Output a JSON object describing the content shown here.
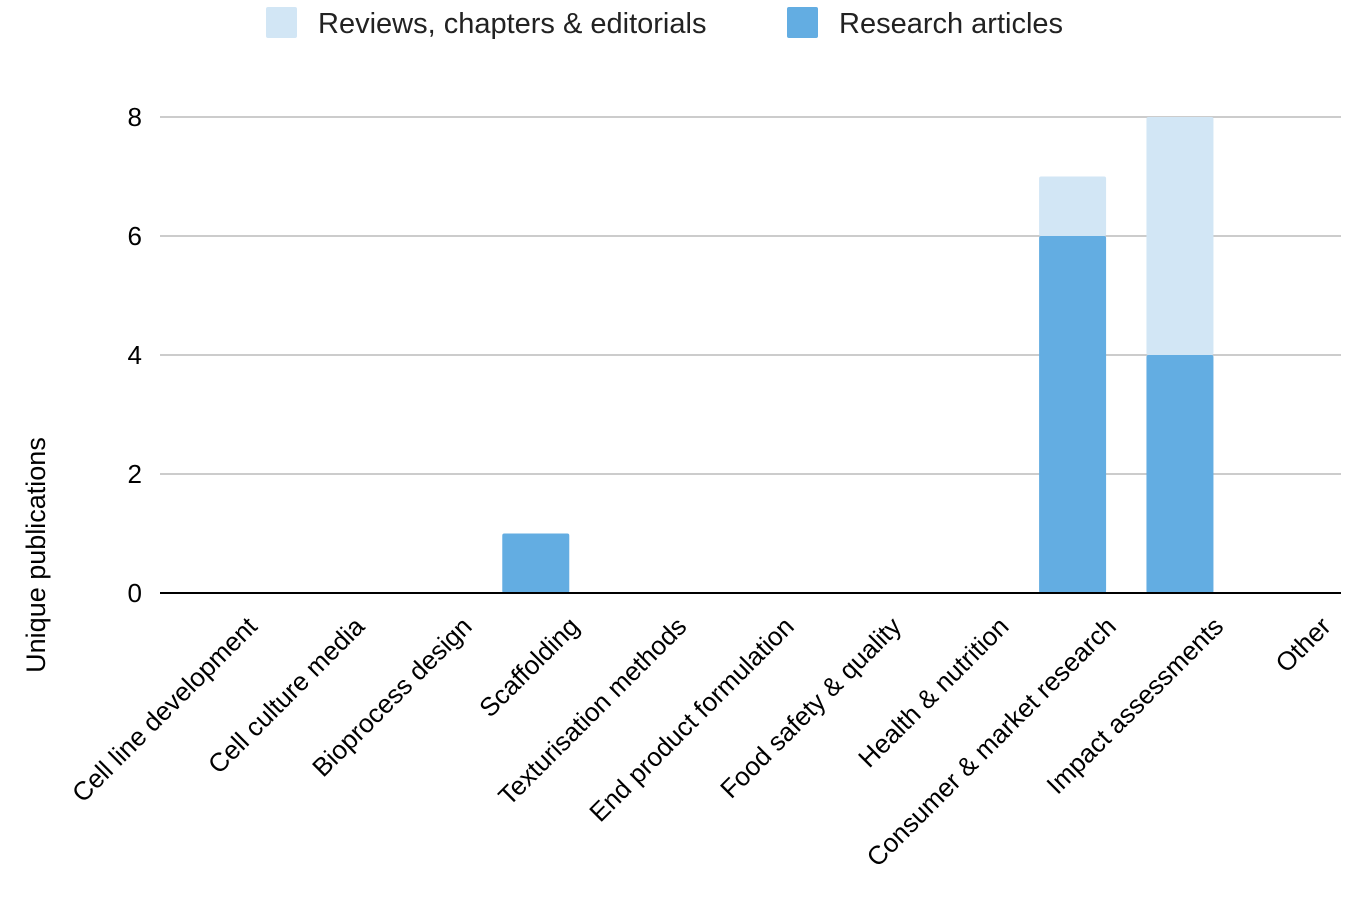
{
  "chart_data": {
    "type": "bar",
    "stacked": true,
    "categories": [
      "Cell line development",
      "Cell culture media",
      "Bioprocess design",
      "Scaffolding",
      "Texturisation methods",
      "End product formulation",
      "Food safety & quality",
      "Health & nutrition",
      "Consumer & market research",
      "Impact assessments",
      "Other"
    ],
    "series": [
      {
        "name": "Research articles",
        "color": "#63ade2",
        "values": [
          0,
          0,
          0,
          1,
          0,
          0,
          0,
          0,
          6,
          4,
          0
        ]
      },
      {
        "name": "Reviews, chapters & editorials",
        "color": "#d2e6f5",
        "values": [
          0,
          0,
          0,
          0,
          0,
          0,
          0,
          0,
          1,
          4,
          0
        ]
      }
    ],
    "legend": {
      "placement": "top-center",
      "order": [
        "Reviews, chapters & editorials",
        "Research articles"
      ]
    },
    "xlabel": "",
    "ylabel": "Unique publications",
    "ylim": [
      0,
      8
    ],
    "yticks": [
      "0",
      "2",
      "4",
      "6",
      "8"
    ],
    "grid": true
  }
}
